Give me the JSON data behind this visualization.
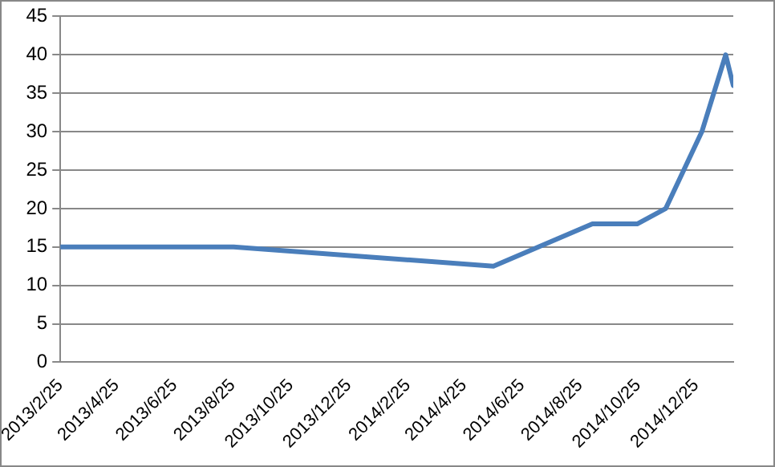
{
  "chart_data": {
    "type": "line",
    "x": [
      "2013-02-25",
      "2013-08-26",
      "2014-05-26",
      "2014-09-07",
      "2014-10-24",
      "2014-11-23",
      "2014-12-31",
      "2015-01-25",
      "2015-02-02"
    ],
    "series": [
      {
        "color": "#4a7ebb",
        "values": [
          15,
          15,
          12.5,
          18,
          18,
          20,
          30,
          40,
          36
        ]
      }
    ],
    "xlim": [
      "2013-02-25",
      "2015-02-02"
    ],
    "xticks": [
      {
        "value": "2013-02-25",
        "label": "2013/2/25"
      },
      {
        "value": "2013-04-25",
        "label": "2013/4/25"
      },
      {
        "value": "2013-06-25",
        "label": "2013/6/25"
      },
      {
        "value": "2013-08-25",
        "label": "2013/8/25"
      },
      {
        "value": "2013-10-25",
        "label": "2013/10/25"
      },
      {
        "value": "2013-12-25",
        "label": "2013/12/25"
      },
      {
        "value": "2014-02-25",
        "label": "2014/2/25"
      },
      {
        "value": "2014-04-25",
        "label": "2014/4/25"
      },
      {
        "value": "2014-06-25",
        "label": "2014/6/25"
      },
      {
        "value": "2014-08-25",
        "label": "2014/8/25"
      },
      {
        "value": "2014-10-25",
        "label": "2014/10/25"
      },
      {
        "value": "2014-12-25",
        "label": "2014/12/25"
      }
    ],
    "ylim": [
      0,
      45
    ],
    "yticks": [
      0,
      5,
      10,
      15,
      20,
      25,
      30,
      35,
      40,
      45
    ],
    "grid": "y",
    "legend": false,
    "marker": "none",
    "line_style": "solid"
  }
}
